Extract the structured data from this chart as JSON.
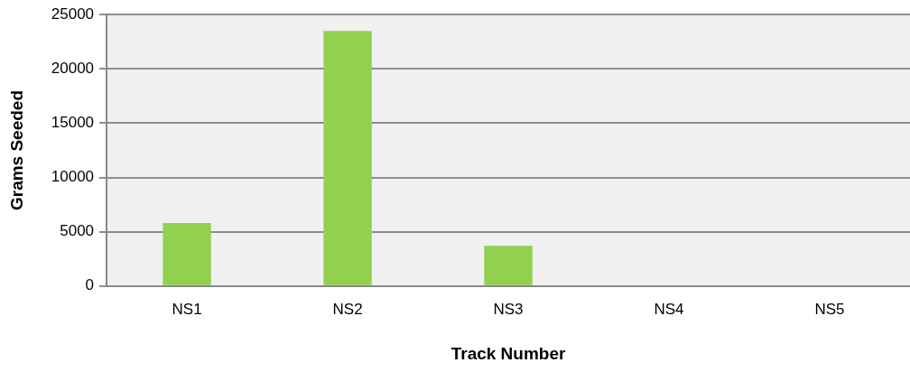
{
  "chart_data": {
    "type": "bar",
    "xlabel": "Track Number",
    "ylabel": "Grams Seeded",
    "categories": [
      "NS1",
      "NS2",
      "NS3",
      "NS4",
      "NS5"
    ],
    "values": [
      5800,
      23500,
      3700,
      0,
      0
    ],
    "color": "#92d050",
    "ylim": [
      0,
      25000
    ],
    "yticks": [
      0,
      5000,
      10000,
      15000,
      20000,
      25000
    ],
    "grid": "y",
    "legend": false
  }
}
